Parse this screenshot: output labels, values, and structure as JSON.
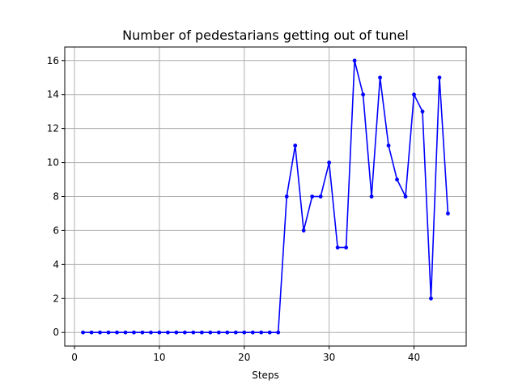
{
  "chart_data": {
    "type": "line",
    "title": "Number of pedestarians getting out of tunel",
    "xlabel": "Steps",
    "ylabel": "",
    "xlim": [
      -1.15,
      46.15
    ],
    "ylim": [
      -0.8,
      16.8
    ],
    "xticks": [
      0,
      10,
      20,
      30,
      40
    ],
    "yticks": [
      0,
      2,
      4,
      6,
      8,
      10,
      12,
      14,
      16
    ],
    "grid": true,
    "line_color": "#0000ff",
    "x": [
      1,
      2,
      3,
      4,
      5,
      6,
      7,
      8,
      9,
      10,
      11,
      12,
      13,
      14,
      15,
      16,
      17,
      18,
      19,
      20,
      21,
      22,
      23,
      24,
      25,
      26,
      27,
      28,
      29,
      30,
      31,
      32,
      33,
      34,
      35,
      36,
      37,
      38,
      39,
      40,
      41,
      42,
      43,
      44
    ],
    "values": [
      0,
      0,
      0,
      0,
      0,
      0,
      0,
      0,
      0,
      0,
      0,
      0,
      0,
      0,
      0,
      0,
      0,
      0,
      0,
      0,
      0,
      0,
      0,
      0,
      8,
      11,
      6,
      8,
      8,
      10,
      5,
      5,
      16,
      14,
      8,
      15,
      11,
      9,
      8,
      14,
      13,
      2,
      15,
      7
    ]
  }
}
